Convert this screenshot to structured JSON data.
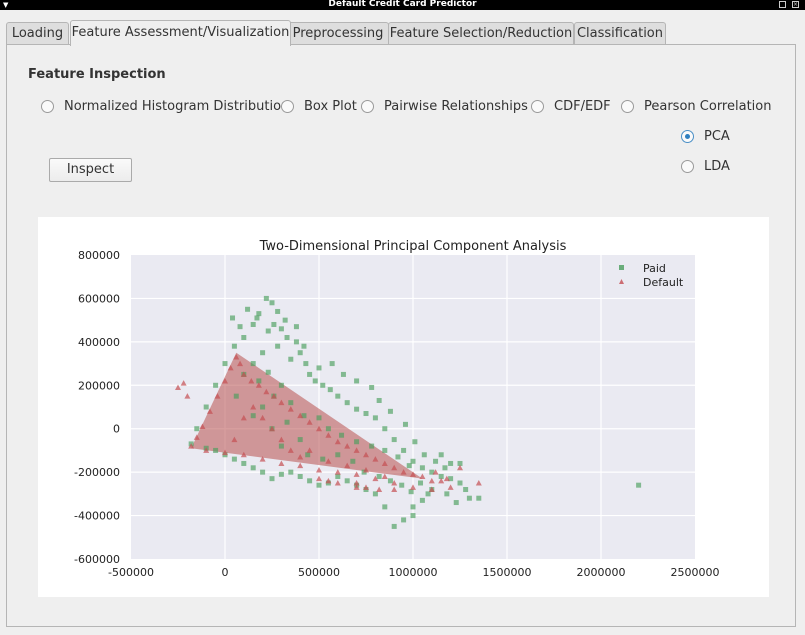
{
  "window": {
    "title": "Default Credit Card Predictor"
  },
  "tabs": [
    {
      "label": "Loading",
      "active": false
    },
    {
      "label": "Feature Assessment/Visualization",
      "active": true
    },
    {
      "label": "Preprocessing",
      "active": false
    },
    {
      "label": "Feature Selection/Reduction",
      "active": false
    },
    {
      "label": "Classification",
      "active": false
    }
  ],
  "inspection": {
    "title": "Feature Inspection",
    "options": [
      {
        "label": "Normalized Histogram Distribution",
        "checked": false
      },
      {
        "label": "Box Plot",
        "checked": false
      },
      {
        "label": "Pairwise Relationships",
        "checked": false
      },
      {
        "label": "CDF/EDF",
        "checked": false
      },
      {
        "label": "Pearson Correlation",
        "checked": false
      },
      {
        "label": "PCA",
        "checked": true
      },
      {
        "label": "LDA",
        "checked": false
      }
    ],
    "inspect_button": "Inspect"
  },
  "chart_data": {
    "type": "scatter",
    "title": "Two-Dimensional Principal Component Analysis",
    "xlabel": "",
    "ylabel": "",
    "xlim": [
      -500000,
      2500000
    ],
    "ylim": [
      -600000,
      800000
    ],
    "xticks": [
      "-500000",
      "0",
      "500000",
      "1000000",
      "1500000",
      "2000000",
      "2500000"
    ],
    "yticks": [
      "800000",
      "600000",
      "400000",
      "200000",
      "0",
      "-200000",
      "-400000",
      "-600000"
    ],
    "grid": true,
    "legend_position": "top-right",
    "colors": {
      "Paid": "#4a9e5c",
      "Default": "#c44e52",
      "background": "#eaeaf2"
    },
    "series": [
      {
        "name": "Paid",
        "marker": "square",
        "points": [
          [
            -180000,
            -70000
          ],
          [
            -150000,
            0
          ],
          [
            -100000,
            100000
          ],
          [
            -50000,
            200000
          ],
          [
            0,
            300000
          ],
          [
            50000,
            380000
          ],
          [
            100000,
            420000
          ],
          [
            150000,
            480000
          ],
          [
            180000,
            530000
          ],
          [
            220000,
            600000
          ],
          [
            250000,
            580000
          ],
          [
            280000,
            540000
          ],
          [
            260000,
            480000
          ],
          [
            300000,
            460000
          ],
          [
            330000,
            420000
          ],
          [
            380000,
            400000
          ],
          [
            400000,
            350000
          ],
          [
            430000,
            300000
          ],
          [
            450000,
            250000
          ],
          [
            480000,
            220000
          ],
          [
            520000,
            200000
          ],
          [
            560000,
            180000
          ],
          [
            600000,
            150000
          ],
          [
            650000,
            120000
          ],
          [
            700000,
            90000
          ],
          [
            750000,
            70000
          ],
          [
            800000,
            50000
          ],
          [
            850000,
            0
          ],
          [
            900000,
            -50000
          ],
          [
            950000,
            -100000
          ],
          [
            1000000,
            -150000
          ],
          [
            1050000,
            -180000
          ],
          [
            1100000,
            -200000
          ],
          [
            1150000,
            -220000
          ],
          [
            1200000,
            -230000
          ],
          [
            1250000,
            -250000
          ],
          [
            1280000,
            -280000
          ],
          [
            1300000,
            -320000
          ],
          [
            1350000,
            -320000
          ],
          [
            1200000,
            -160000
          ],
          [
            1150000,
            -120000
          ],
          [
            1250000,
            -160000
          ],
          [
            1100000,
            -280000
          ],
          [
            1050000,
            -330000
          ],
          [
            1000000,
            -360000
          ],
          [
            950000,
            -420000
          ],
          [
            900000,
            -450000
          ],
          [
            1000000,
            -400000
          ],
          [
            850000,
            -360000
          ],
          [
            800000,
            -300000
          ],
          [
            750000,
            -280000
          ],
          [
            700000,
            -260000
          ],
          [
            650000,
            -240000
          ],
          [
            600000,
            -220000
          ],
          [
            550000,
            -250000
          ],
          [
            500000,
            -260000
          ],
          [
            450000,
            -240000
          ],
          [
            400000,
            -220000
          ],
          [
            350000,
            -200000
          ],
          [
            300000,
            -210000
          ],
          [
            250000,
            -230000
          ],
          [
            200000,
            -200000
          ],
          [
            150000,
            -180000
          ],
          [
            100000,
            -160000
          ],
          [
            50000,
            -140000
          ],
          [
            0,
            -120000
          ],
          [
            -50000,
            -100000
          ],
          [
            -100000,
            -90000
          ],
          [
            200000,
            100000
          ],
          [
            300000,
            200000
          ],
          [
            350000,
            120000
          ],
          [
            420000,
            60000
          ],
          [
            500000,
            50000
          ],
          [
            550000,
            0
          ],
          [
            620000,
            -30000
          ],
          [
            700000,
            -60000
          ],
          [
            780000,
            -80000
          ],
          [
            850000,
            -100000
          ],
          [
            920000,
            -130000
          ],
          [
            980000,
            -170000
          ],
          [
            400000,
            -50000
          ],
          [
            300000,
            -80000
          ],
          [
            250000,
            0
          ],
          [
            150000,
            60000
          ],
          [
            100000,
            250000
          ],
          [
            60000,
            150000
          ],
          [
            150000,
            300000
          ],
          [
            200000,
            350000
          ],
          [
            280000,
            380000
          ],
          [
            350000,
            320000
          ],
          [
            420000,
            380000
          ],
          [
            500000,
            280000
          ],
          [
            570000,
            300000
          ],
          [
            630000,
            250000
          ],
          [
            700000,
            220000
          ],
          [
            780000,
            190000
          ],
          [
            820000,
            130000
          ],
          [
            880000,
            80000
          ],
          [
            960000,
            20000
          ],
          [
            1010000,
            -60000
          ],
          [
            1060000,
            -120000
          ],
          [
            1120000,
            -150000
          ],
          [
            1170000,
            -180000
          ],
          [
            2200000,
            -260000
          ],
          [
            40000,
            510000
          ],
          [
            80000,
            470000
          ],
          [
            120000,
            550000
          ],
          [
            170000,
            510000
          ],
          [
            230000,
            450000
          ],
          [
            320000,
            500000
          ],
          [
            380000,
            470000
          ],
          [
            230000,
            260000
          ],
          [
            180000,
            220000
          ],
          [
            260000,
            150000
          ],
          [
            330000,
            30000
          ],
          [
            440000,
            -120000
          ],
          [
            520000,
            -140000
          ],
          [
            600000,
            -120000
          ],
          [
            680000,
            -150000
          ],
          [
            740000,
            -200000
          ],
          [
            820000,
            -220000
          ],
          [
            880000,
            -240000
          ],
          [
            940000,
            -260000
          ],
          [
            990000,
            -290000
          ],
          [
            1040000,
            -250000
          ],
          [
            1080000,
            -300000
          ],
          [
            1180000,
            -300000
          ],
          [
            1230000,
            -340000
          ]
        ]
      },
      {
        "name": "Default",
        "marker": "triangle",
        "points": [
          [
            -180000,
            -80000
          ],
          [
            -150000,
            -40000
          ],
          [
            -120000,
            10000
          ],
          [
            -80000,
            80000
          ],
          [
            -40000,
            150000
          ],
          [
            0,
            220000
          ],
          [
            30000,
            280000
          ],
          [
            60000,
            330000
          ],
          [
            80000,
            300000
          ],
          [
            100000,
            250000
          ],
          [
            140000,
            220000
          ],
          [
            180000,
            200000
          ],
          [
            220000,
            170000
          ],
          [
            260000,
            150000
          ],
          [
            300000,
            120000
          ],
          [
            350000,
            90000
          ],
          [
            400000,
            60000
          ],
          [
            450000,
            30000
          ],
          [
            500000,
            0
          ],
          [
            550000,
            -30000
          ],
          [
            600000,
            -60000
          ],
          [
            650000,
            -80000
          ],
          [
            700000,
            -100000
          ],
          [
            750000,
            -120000
          ],
          [
            800000,
            -140000
          ],
          [
            850000,
            -160000
          ],
          [
            900000,
            -180000
          ],
          [
            950000,
            -200000
          ],
          [
            1000000,
            -210000
          ],
          [
            1050000,
            -220000
          ],
          [
            1100000,
            -240000
          ],
          [
            1000000,
            -270000
          ],
          [
            900000,
            -250000
          ],
          [
            800000,
            -230000
          ],
          [
            700000,
            -210000
          ],
          [
            600000,
            -200000
          ],
          [
            500000,
            -190000
          ],
          [
            400000,
            -170000
          ],
          [
            300000,
            -160000
          ],
          [
            200000,
            -140000
          ],
          [
            100000,
            -120000
          ],
          [
            0,
            -110000
          ],
          [
            -100000,
            -100000
          ],
          [
            50000,
            -50000
          ],
          [
            100000,
            50000
          ],
          [
            150000,
            100000
          ],
          [
            200000,
            50000
          ],
          [
            250000,
            0
          ],
          [
            300000,
            -50000
          ],
          [
            350000,
            -100000
          ],
          [
            400000,
            -130000
          ],
          [
            450000,
            -100000
          ],
          [
            550000,
            -150000
          ],
          [
            650000,
            -170000
          ],
          [
            750000,
            -190000
          ],
          [
            850000,
            -220000
          ],
          [
            -250000,
            190000
          ],
          [
            -220000,
            210000
          ],
          [
            -200000,
            150000
          ],
          [
            1180000,
            -230000
          ],
          [
            1200000,
            -270000
          ],
          [
            1350000,
            -250000
          ],
          [
            820000,
            -280000
          ],
          [
            600000,
            -250000
          ],
          [
            700000,
            -270000
          ],
          [
            900000,
            -280000
          ],
          [
            1100000,
            -280000
          ],
          [
            700000,
            -250000
          ],
          [
            750000,
            -270000
          ],
          [
            1120000,
            -200000
          ],
          [
            1150000,
            -240000
          ],
          [
            500000,
            -230000
          ],
          [
            550000,
            -240000
          ],
          [
            1250000,
            -180000
          ]
        ]
      }
    ]
  }
}
